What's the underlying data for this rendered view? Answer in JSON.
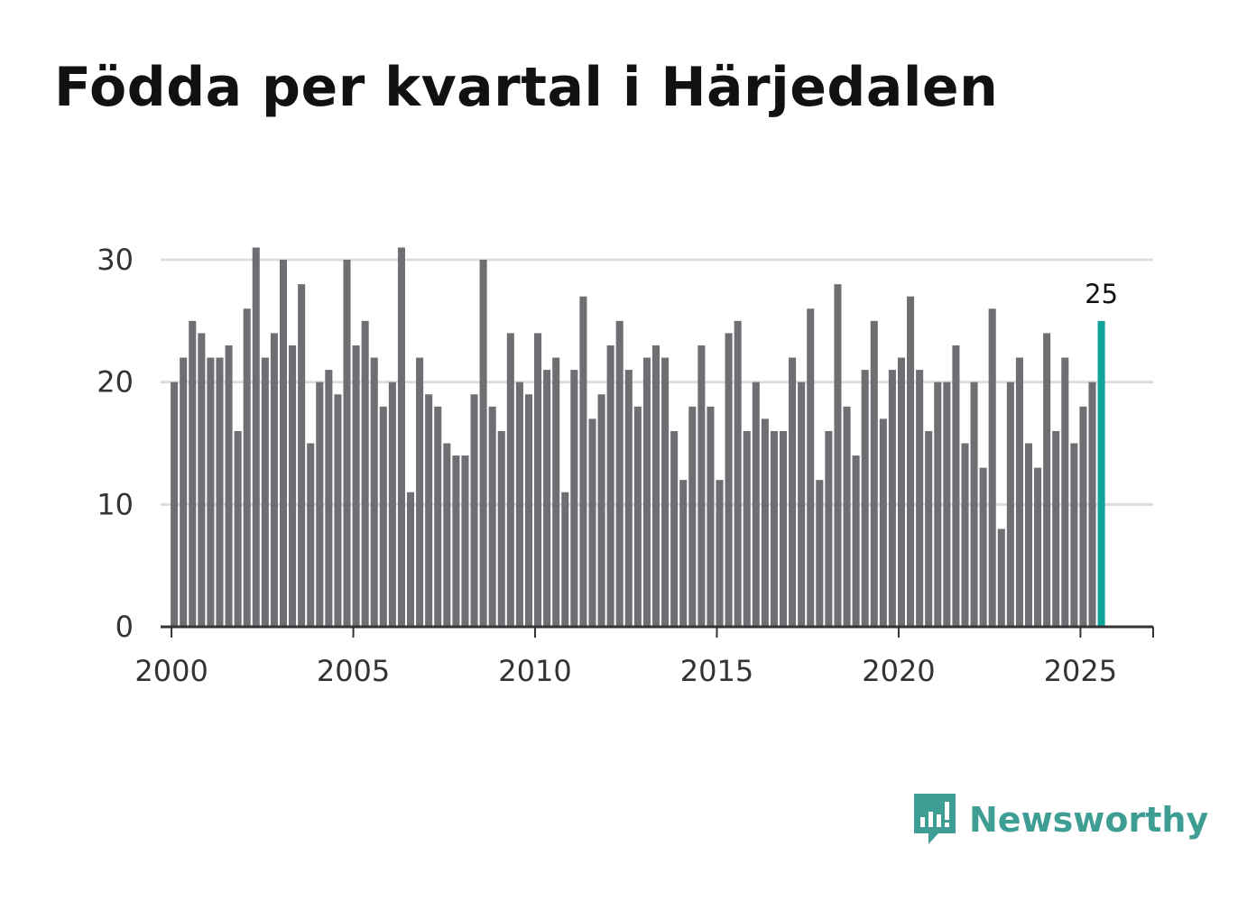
{
  "title": "Födda per kvartal i Härjedalen",
  "brand": {
    "name": "Newsworthy",
    "icon": "newsworthy-logo-icon",
    "color": "#3f9e94"
  },
  "colors": {
    "bar": "#6e6e73",
    "highlight": "#12a39a",
    "grid": "#dddddd",
    "axis": "#333333"
  },
  "chart_data": {
    "type": "bar",
    "title": "Födda per kvartal i Härjedalen",
    "xlabel": "",
    "ylabel": "",
    "x_start": 2000.0,
    "x_step": 0.25,
    "xlim": [
      1999.7,
      2027.0
    ],
    "ylim": [
      0,
      30
    ],
    "y_ticks": [
      0,
      10,
      20,
      30
    ],
    "x_ticks": [
      2000,
      2005,
      2010,
      2015,
      2020,
      2025
    ],
    "grid": true,
    "values": [
      20,
      22,
      25,
      24,
      22,
      22,
      23,
      16,
      26,
      31,
      22,
      24,
      30,
      23,
      28,
      15,
      20,
      21,
      19,
      30,
      23,
      25,
      22,
      18,
      20,
      31,
      11,
      22,
      19,
      18,
      15,
      14,
      14,
      19,
      30,
      18,
      16,
      24,
      20,
      19,
      24,
      21,
      22,
      11,
      21,
      27,
      17,
      19,
      23,
      25,
      21,
      18,
      22,
      23,
      22,
      16,
      12,
      18,
      23,
      18,
      12,
      24,
      25,
      16,
      20,
      17,
      16,
      16,
      22,
      20,
      26,
      12,
      16,
      28,
      18,
      14,
      21,
      25,
      17,
      21,
      22,
      27,
      21,
      16,
      20,
      20,
      23,
      15,
      20,
      13,
      26,
      8,
      20,
      22,
      15,
      13,
      24,
      16,
      22,
      15,
      18,
      20,
      25
    ],
    "highlight_index": 102,
    "highlight_label": "25"
  }
}
